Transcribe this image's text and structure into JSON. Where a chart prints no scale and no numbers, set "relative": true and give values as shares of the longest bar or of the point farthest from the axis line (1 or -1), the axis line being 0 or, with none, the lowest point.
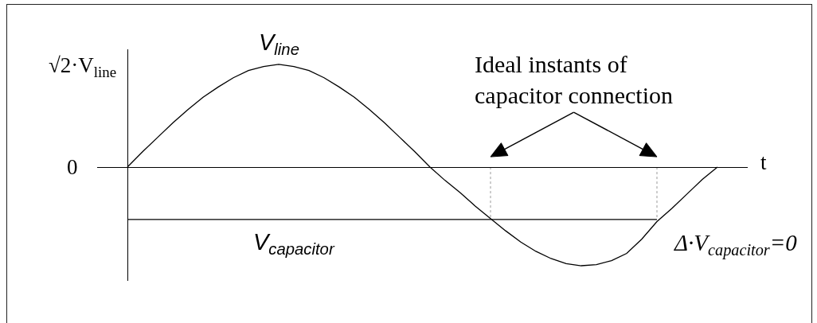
{
  "chart_data": {
    "type": "line",
    "xlabel": "t",
    "relative": true,
    "categories": [
      null,
      null,
      null,
      null,
      null,
      null,
      null,
      null,
      null,
      null,
      null,
      null,
      null,
      null,
      null,
      null,
      null,
      null,
      null,
      null,
      null,
      null,
      null,
      null,
      null,
      null,
      null,
      null,
      null,
      null,
      null,
      null,
      null,
      null,
      null,
      null,
      null,
      null,
      null,
      null
    ],
    "series": [
      {
        "name": "V$_{line}$",
        "color": "#000000",
        "values": [
          0,
          0.15,
          0.29,
          0.43,
          0.56,
          0.68,
          0.78,
          0.87,
          0.94,
          0.98,
          1,
          0.98,
          0.94,
          0.87,
          0.78,
          0.68,
          0.56,
          0.43,
          0.29,
          0.15,
          0,
          -0.13,
          -0.25,
          -0.38,
          -0.5,
          -0.62,
          -0.73,
          -0.82,
          -0.89,
          -0.94,
          -0.96,
          -0.95,
          -0.91,
          -0.84,
          -0.7,
          -0.53,
          -0.4,
          -0.26,
          -0.12,
          0
        ]
      },
      {
        "name": "V$_{capacitor}$",
        "color": "#000000",
        "values": [
          -0.51,
          -0.51,
          -0.51,
          -0.51,
          -0.51,
          -0.51,
          -0.51,
          -0.51,
          -0.51,
          -0.51,
          -0.51,
          -0.51,
          -0.51,
          -0.51,
          -0.51,
          -0.51,
          -0.51,
          -0.51,
          -0.51,
          -0.51,
          -0.51,
          -0.51,
          -0.51,
          -0.51,
          -0.51,
          -0.51,
          -0.51,
          -0.51,
          -0.51,
          -0.51,
          -0.51,
          -0.51,
          -0.51,
          -0.51,
          -0.51,
          -0.51,
          null,
          null,
          null,
          null
        ]
      }
    ],
    "annotations": [
      "0",
      "√2·V$_{line}$",
      "Ideal instants of\ncapacitor connection",
      "Δ·V$_{capacitor}$=0"
    ]
  }
}
